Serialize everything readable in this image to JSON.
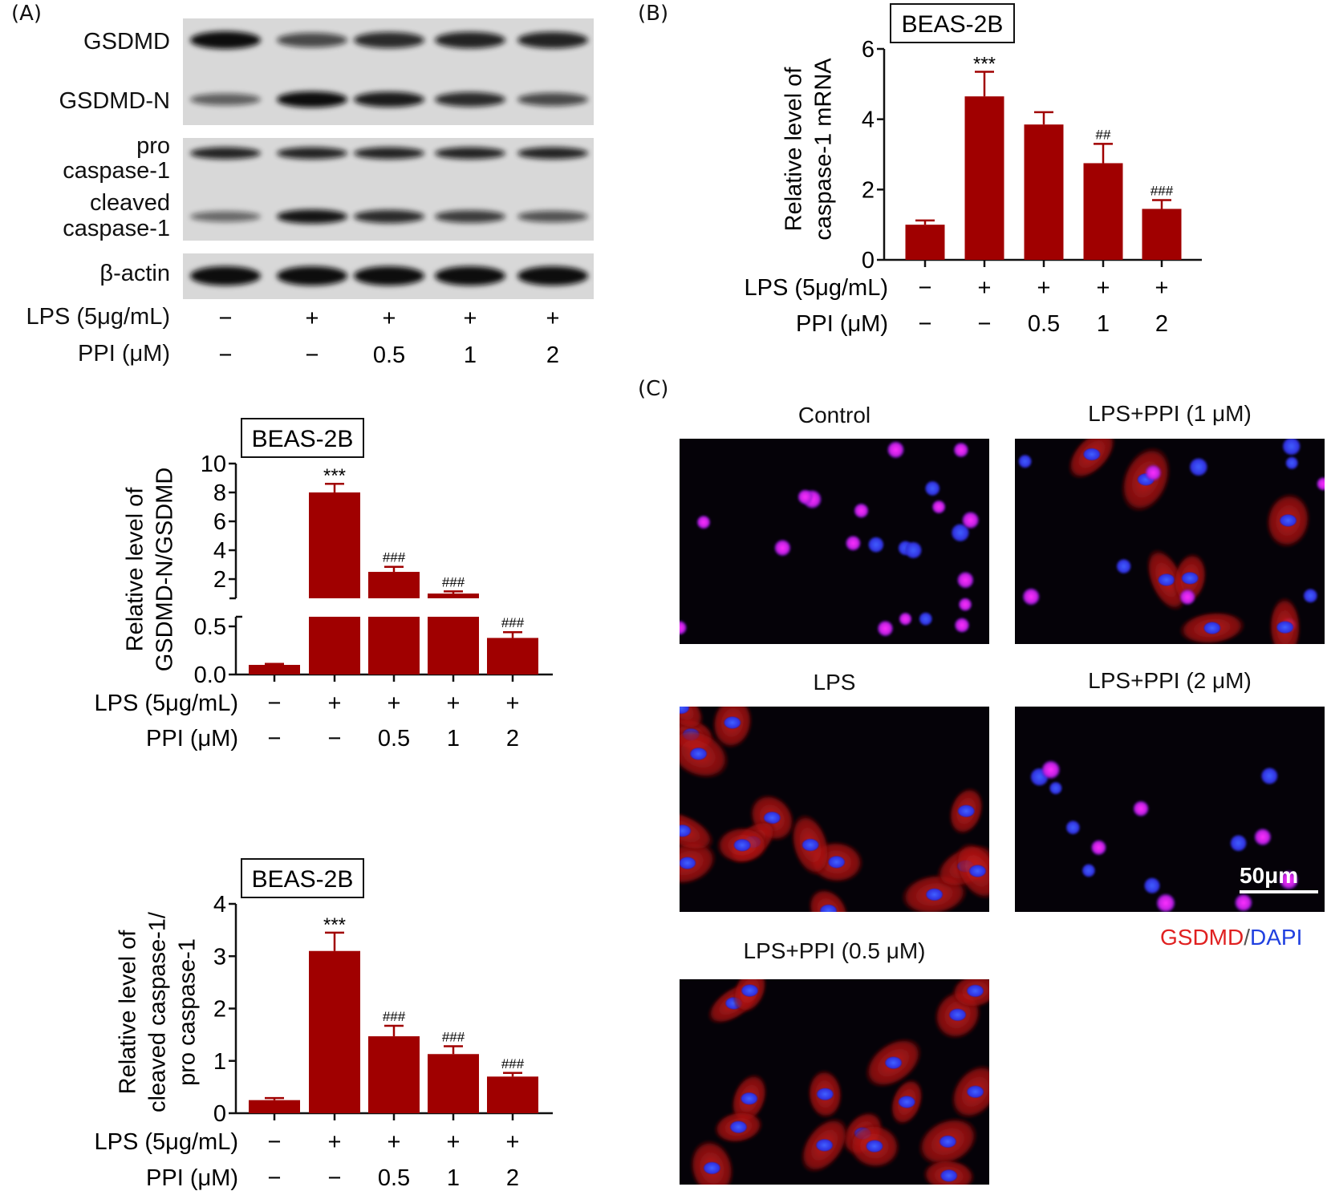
{
  "panel_labels": {
    "a": "(A)",
    "b": "(B)",
    "c": "(C)"
  },
  "western_blot": {
    "bands": [
      {
        "label": "GSDMD",
        "intensity": [
          1.0,
          0.6,
          0.8,
          0.85,
          0.85
        ]
      },
      {
        "label": "GSDMD-N",
        "intensity": [
          0.45,
          1.0,
          0.9,
          0.8,
          0.6
        ]
      },
      {
        "label": "pro caspase-1",
        "line1": "pro",
        "line2": "caspase-1",
        "intensity": [
          0.85,
          0.85,
          0.85,
          0.85,
          0.85
        ]
      },
      {
        "label": "cleaved caspase-1",
        "line1": "cleaved",
        "line2": "caspase-1",
        "intensity": [
          0.4,
          0.95,
          0.8,
          0.7,
          0.55
        ]
      },
      {
        "label": "β-actin",
        "intensity": [
          1.0,
          1.0,
          1.0,
          1.0,
          1.0
        ]
      }
    ],
    "lps_label": "LPS (5μg/mL)",
    "lps_values": [
      "−",
      "+",
      "+",
      "+",
      "+"
    ],
    "ppi_label": "PPI (μM)",
    "ppi_values": [
      "−",
      "−",
      "0.5",
      "1",
      "2"
    ]
  },
  "chart_data": [
    {
      "id": "gsdmd_ratio",
      "type": "bar",
      "title": "BEAS-2B",
      "ylabel": [
        "Relative level of",
        "GSDMD-N/GSDMD"
      ],
      "categories": [
        "LPS−/PPI−",
        "LPS+/PPI−",
        "LPS+/PPI 0.5",
        "LPS+/PPI 1",
        "LPS+/PPI 2"
      ],
      "rows": [
        {
          "label": "LPS (5μg/mL)",
          "values": [
            "−",
            "+",
            "+",
            "+",
            "+"
          ]
        },
        {
          "label": "PPI (μM)",
          "values": [
            "−",
            "−",
            "0.5",
            "1",
            "2"
          ]
        }
      ],
      "values": [
        0.1,
        8.0,
        2.5,
        1.0,
        0.38
      ],
      "errors": [
        0.01,
        0.6,
        0.35,
        0.15,
        0.06
      ],
      "significance": [
        "",
        "***",
        "###",
        "###",
        "###"
      ],
      "axis_break": true,
      "yticks_lower": [
        "0.0",
        "0.5"
      ],
      "yticks_upper": [
        "2",
        "4",
        "6",
        "8",
        "10"
      ],
      "ylim": [
        0,
        10
      ],
      "color": "#a00000"
    },
    {
      "id": "caspase_ratio",
      "type": "bar",
      "title": "BEAS-2B",
      "ylabel": [
        "Relative level of",
        "cleaved caspase-1/",
        "pro caspase-1"
      ],
      "categories": [
        "LPS−/PPI−",
        "LPS+/PPI−",
        "LPS+/PPI 0.5",
        "LPS+/PPI 1",
        "LPS+/PPI 2"
      ],
      "rows": [
        {
          "label": "LPS (5μg/mL)",
          "values": [
            "−",
            "+",
            "+",
            "+",
            "+"
          ]
        },
        {
          "label": "PPI (μM)",
          "values": [
            "−",
            "−",
            "0.5",
            "1",
            "2"
          ]
        }
      ],
      "values": [
        0.25,
        3.1,
        1.47,
        1.13,
        0.7
      ],
      "errors": [
        0.04,
        0.35,
        0.2,
        0.15,
        0.07
      ],
      "significance": [
        "",
        "***",
        "###",
        "###",
        "###"
      ],
      "yticks": [
        "0",
        "1",
        "2",
        "3",
        "4"
      ],
      "ylim": [
        0,
        4
      ],
      "color": "#a00000"
    },
    {
      "id": "caspase_mrna",
      "type": "bar",
      "title": "BEAS-2B",
      "ylabel": [
        "Relative level of",
        "caspase-1 mRNA"
      ],
      "categories": [
        "LPS−/PPI−",
        "LPS+/PPI−",
        "LPS+/PPI 0.5",
        "LPS+/PPI 1",
        "LPS+/PPI 2"
      ],
      "rows": [
        {
          "label": "LPS (5μg/mL)",
          "values": [
            "−",
            "+",
            "+",
            "+",
            "+"
          ]
        },
        {
          "label": "PPI (μM)",
          "values": [
            "−",
            "−",
            "0.5",
            "1",
            "2"
          ]
        }
      ],
      "values": [
        1.0,
        4.65,
        3.85,
        2.75,
        1.45
      ],
      "errors": [
        0.12,
        0.7,
        0.35,
        0.55,
        0.25
      ],
      "significance": [
        "",
        "***",
        "",
        "##",
        "###"
      ],
      "yticks": [
        "0",
        "2",
        "4",
        "6"
      ],
      "ylim": [
        0,
        6
      ],
      "color": "#a00000"
    }
  ],
  "fluorescence": {
    "images": [
      {
        "title": "Control",
        "style": "nuclei"
      },
      {
        "title": "LPS+PPI (1 μM)",
        "style": "mixed"
      },
      {
        "title": "LPS",
        "style": "cells"
      },
      {
        "title": "LPS+PPI (2 μM)",
        "style": "nuclei_sparse"
      },
      {
        "title": "LPS+PPI (0.5 μM)",
        "style": "cells"
      }
    ],
    "scale_bar": "50μm",
    "legend_gsdmd": "GSDMD",
    "legend_sep": "/",
    "legend_dapi": "DAPI",
    "colors": {
      "gsdmd": "#e02020",
      "dapi": "#2040e0"
    }
  }
}
